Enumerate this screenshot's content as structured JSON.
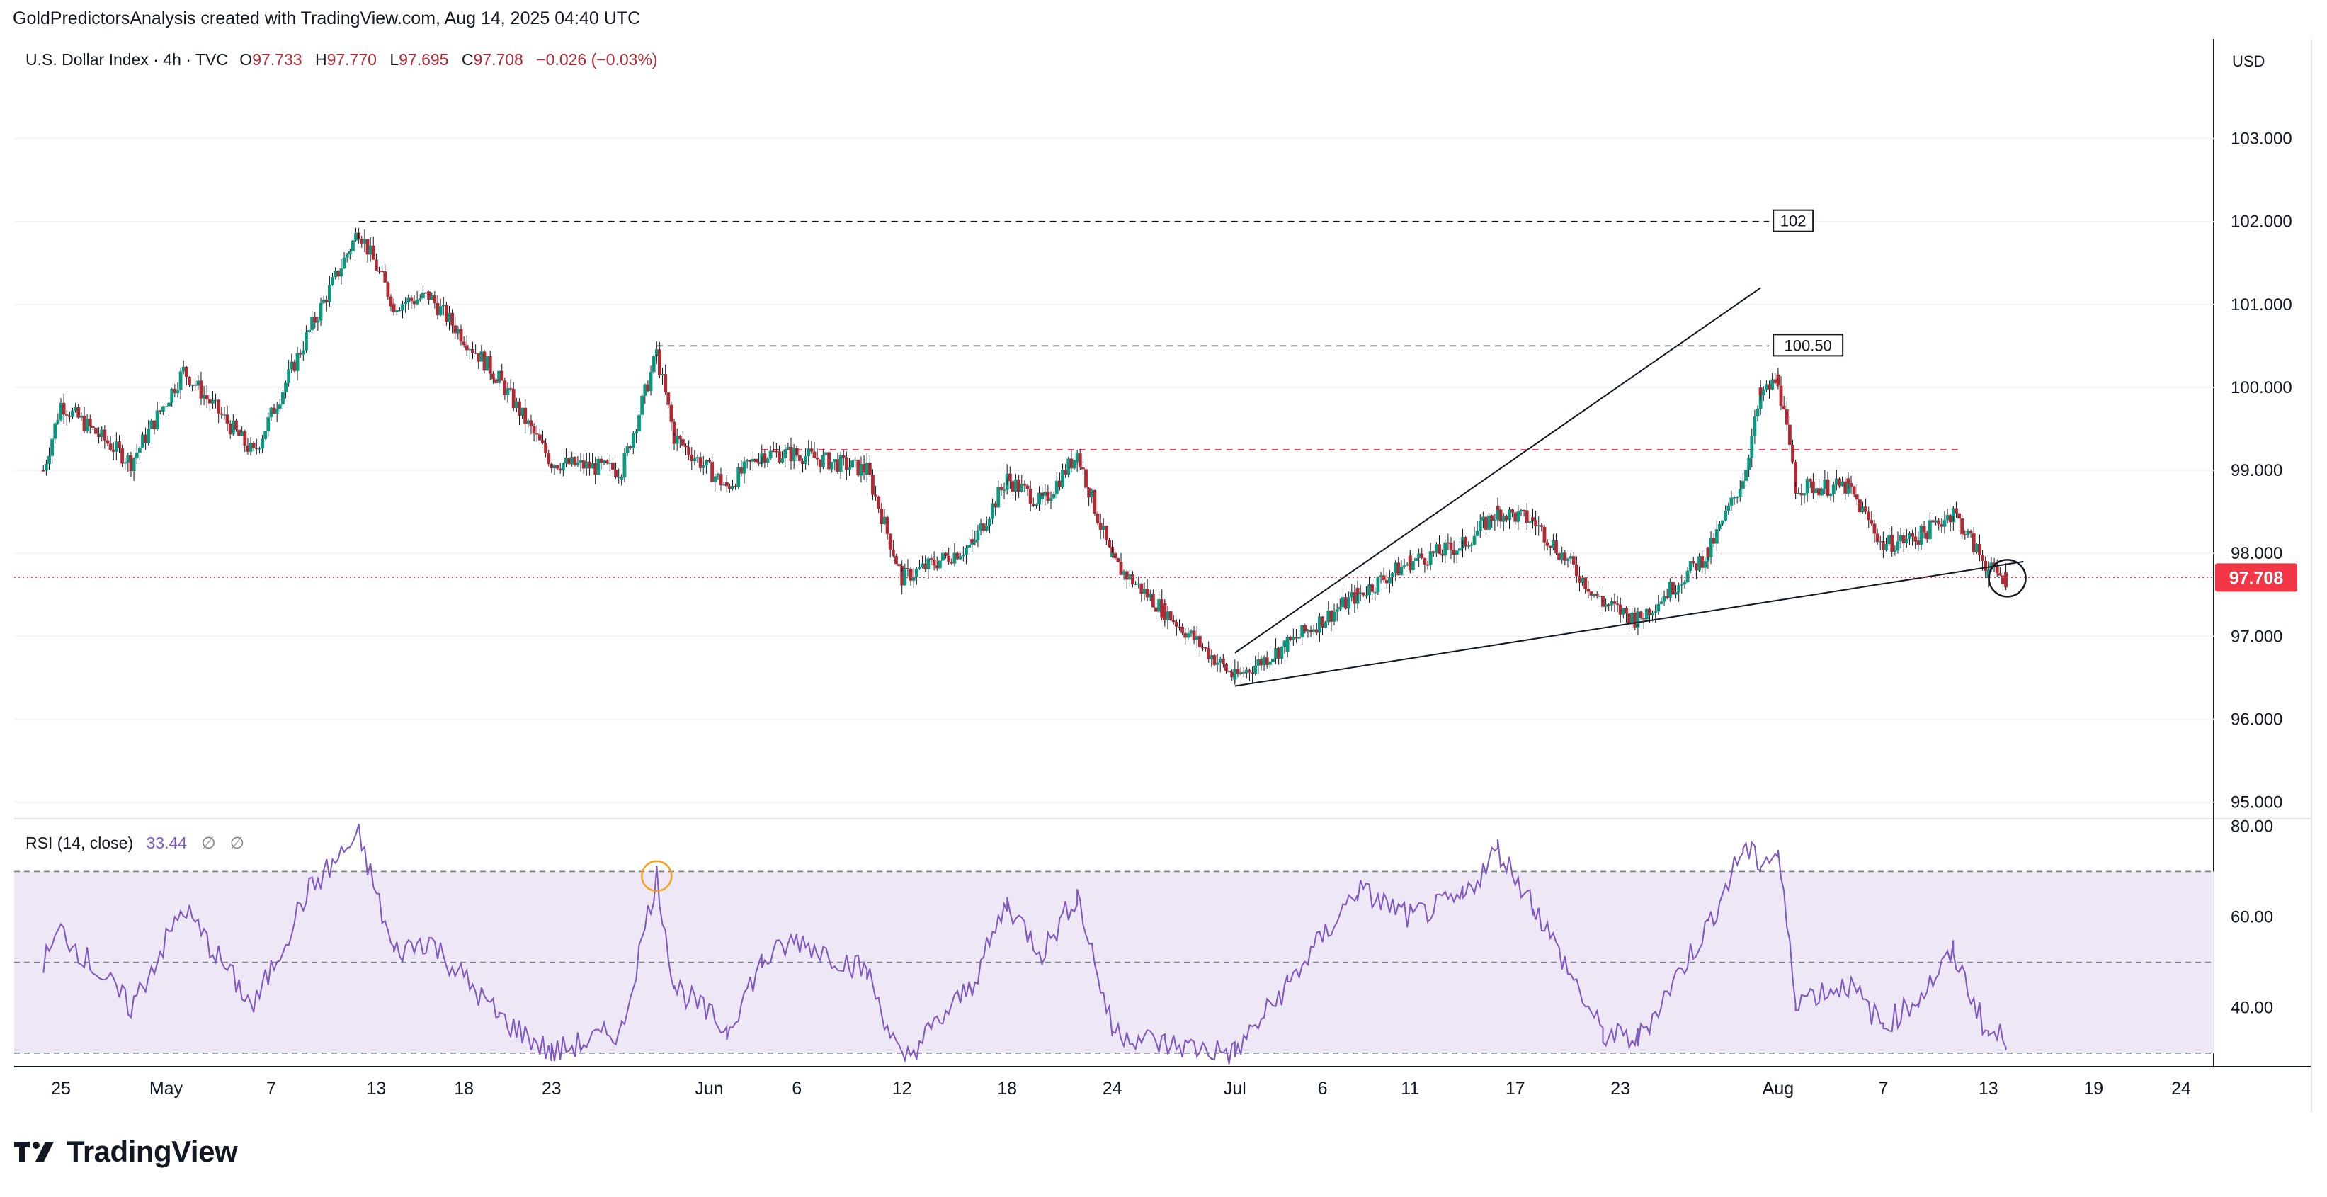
{
  "header": {
    "attribution": "GoldPredictorsAnalysis created with TradingView.com, Aug 14, 2025 04:40 UTC"
  },
  "legend": {
    "symbol": "U.S. Dollar Index · 4h · TVC",
    "O_label": "O",
    "O_value": "97.733",
    "H_label": "H",
    "H_value": "97.770",
    "L_label": "L",
    "L_value": "97.695",
    "C_label": "C",
    "C_value": "97.708",
    "change": "−0.026 (−0.03%)"
  },
  "rsi_legend": {
    "label": "RSI (14, close)",
    "value": "33.44",
    "extra1": "∅",
    "extra2": "∅"
  },
  "brand": {
    "name": "TradingView"
  },
  "colors": {
    "up": "#089981",
    "down": "#b22833",
    "rsi_line": "#7e57c2",
    "rsi_band": "#ede7f6",
    "last_price_bg": "#f23645",
    "resistance_dash": "#f23645",
    "circle_marker": "#f7a21b",
    "grid": "#f0f3fa"
  },
  "chart_data": [
    {
      "type": "candlestick",
      "title": "U.S. Dollar Index · 4h · TVC",
      "currency": "USD",
      "y_axis_labels": [
        "95.000",
        "96.000",
        "97.000",
        "98.000",
        "99.000",
        "100.000",
        "101.000",
        "102.000",
        "103.000"
      ],
      "ylim": [
        94.8,
        104.2
      ],
      "x_axis_labels": [
        "25",
        "May",
        "7",
        "13",
        "18",
        "23",
        "Jun",
        "6",
        "12",
        "18",
        "24",
        "Jul",
        "6",
        "11",
        "17",
        "23",
        "Aug",
        "7",
        "13",
        "19",
        "24"
      ],
      "last_price": "97.708",
      "horizontal_levels": [
        {
          "value": 102.0,
          "label": "102"
        },
        {
          "value": 100.5,
          "label": "100.50"
        },
        {
          "value": 99.25,
          "label": ""
        }
      ],
      "trendlines": [
        {
          "name": "lower",
          "from": [
            "Jul 1",
            96.4
          ],
          "to": [
            "Aug 15",
            97.9
          ]
        },
        {
          "name": "upper",
          "from": [
            "Jul 1",
            96.8
          ],
          "to": [
            "Jul 31",
            101.2
          ]
        }
      ],
      "key_points": [
        {
          "x": "Apr 24",
          "y": 99.0
        },
        {
          "x": "Apr 25",
          "y": 99.8
        },
        {
          "x": "Apr 29",
          "y": 99.1
        },
        {
          "x": "May 2",
          "y": 100.2
        },
        {
          "x": "May 6",
          "y": 99.2
        },
        {
          "x": "May 9",
          "y": 100.6
        },
        {
          "x": "May 12",
          "y": 101.9
        },
        {
          "x": "May 14",
          "y": 101.0
        },
        {
          "x": "May 16",
          "y": 101.1
        },
        {
          "x": "May 20",
          "y": 100.1
        },
        {
          "x": "May 23",
          "y": 99.1
        },
        {
          "x": "May 27",
          "y": 99.0
        },
        {
          "x": "May 29",
          "y": 100.4
        },
        {
          "x": "May 30",
          "y": 99.4
        },
        {
          "x": "Jun 2",
          "y": 98.8
        },
        {
          "x": "Jun 4",
          "y": 99.2
        },
        {
          "x": "Jun 6",
          "y": 99.2
        },
        {
          "x": "Jun 10",
          "y": 99.0
        },
        {
          "x": "Jun 12",
          "y": 97.7
        },
        {
          "x": "Jun 16",
          "y": 98.1
        },
        {
          "x": "Jun 18",
          "y": 98.9
        },
        {
          "x": "Jun 20",
          "y": 98.6
        },
        {
          "x": "Jun 22",
          "y": 99.2
        },
        {
          "x": "Jun 24",
          "y": 97.9
        },
        {
          "x": "Jun 27",
          "y": 97.3
        },
        {
          "x": "Jul 1",
          "y": 96.5
        },
        {
          "x": "Jul 4",
          "y": 96.9
        },
        {
          "x": "Jul 8",
          "y": 97.5
        },
        {
          "x": "Jul 11",
          "y": 97.9
        },
        {
          "x": "Jul 14",
          "y": 98.1
        },
        {
          "x": "Jul 16",
          "y": 98.5
        },
        {
          "x": "Jul 18",
          "y": 98.4
        },
        {
          "x": "Jul 22",
          "y": 97.4
        },
        {
          "x": "Jul 24",
          "y": 97.2
        },
        {
          "x": "Jul 28",
          "y": 98.0
        },
        {
          "x": "Jul 30",
          "y": 98.9
        },
        {
          "x": "Jul 31",
          "y": 99.9
        },
        {
          "x": "Aug 1",
          "y": 100.1
        },
        {
          "x": "Aug 2",
          "y": 98.8
        },
        {
          "x": "Aug 5",
          "y": 98.8
        },
        {
          "x": "Aug 7",
          "y": 98.1
        },
        {
          "x": "Aug 9",
          "y": 98.2
        },
        {
          "x": "Aug 11",
          "y": 98.5
        },
        {
          "x": "Aug 13",
          "y": 97.8
        },
        {
          "x": "Aug 14",
          "y": 97.7
        }
      ]
    },
    {
      "type": "line",
      "title": "RSI (14, close)",
      "y_axis_labels": [
        "40.00",
        "60.00",
        "80.00"
      ],
      "ylim": [
        27,
        81
      ],
      "bands": [
        30,
        50,
        70
      ],
      "last_value": "33.44",
      "key_points": [
        {
          "x": "Apr 24",
          "y": 50
        },
        {
          "x": "Apr 25",
          "y": 57
        },
        {
          "x": "Apr 29",
          "y": 40
        },
        {
          "x": "May 2",
          "y": 62
        },
        {
          "x": "May 6",
          "y": 40
        },
        {
          "x": "May 9",
          "y": 65
        },
        {
          "x": "May 12",
          "y": 78
        },
        {
          "x": "May 14",
          "y": 52
        },
        {
          "x": "May 16",
          "y": 55
        },
        {
          "x": "May 20",
          "y": 38
        },
        {
          "x": "May 23",
          "y": 30
        },
        {
          "x": "May 27",
          "y": 35
        },
        {
          "x": "May 29",
          "y": 69
        },
        {
          "x": "May 30",
          "y": 45
        },
        {
          "x": "Jun 2",
          "y": 35
        },
        {
          "x": "Jun 4",
          "y": 50
        },
        {
          "x": "Jun 6",
          "y": 55
        },
        {
          "x": "Jun 10",
          "y": 48
        },
        {
          "x": "Jun 12",
          "y": 28
        },
        {
          "x": "Jun 16",
          "y": 45
        },
        {
          "x": "Jun 18",
          "y": 63
        },
        {
          "x": "Jun 20",
          "y": 52
        },
        {
          "x": "Jun 22",
          "y": 65
        },
        {
          "x": "Jun 24",
          "y": 35
        },
        {
          "x": "Jun 27",
          "y": 32
        },
        {
          "x": "Jul 1",
          "y": 30
        },
        {
          "x": "Jul 4",
          "y": 45
        },
        {
          "x": "Jul 8",
          "y": 66
        },
        {
          "x": "Jul 11",
          "y": 60
        },
        {
          "x": "Jul 14",
          "y": 64
        },
        {
          "x": "Jul 16",
          "y": 75
        },
        {
          "x": "Jul 18",
          "y": 63
        },
        {
          "x": "Jul 22",
          "y": 34
        },
        {
          "x": "Jul 24",
          "y": 33
        },
        {
          "x": "Jul 28",
          "y": 58
        },
        {
          "x": "Jul 30",
          "y": 75
        },
        {
          "x": "Jul 31",
          "y": 72
        },
        {
          "x": "Aug 1",
          "y": 74
        },
        {
          "x": "Aug 2",
          "y": 42
        },
        {
          "x": "Aug 5",
          "y": 45
        },
        {
          "x": "Aug 7",
          "y": 36
        },
        {
          "x": "Aug 9",
          "y": 42
        },
        {
          "x": "Aug 11",
          "y": 52
        },
        {
          "x": "Aug 13",
          "y": 34
        },
        {
          "x": "Aug 14",
          "y": 33.44
        }
      ]
    }
  ]
}
